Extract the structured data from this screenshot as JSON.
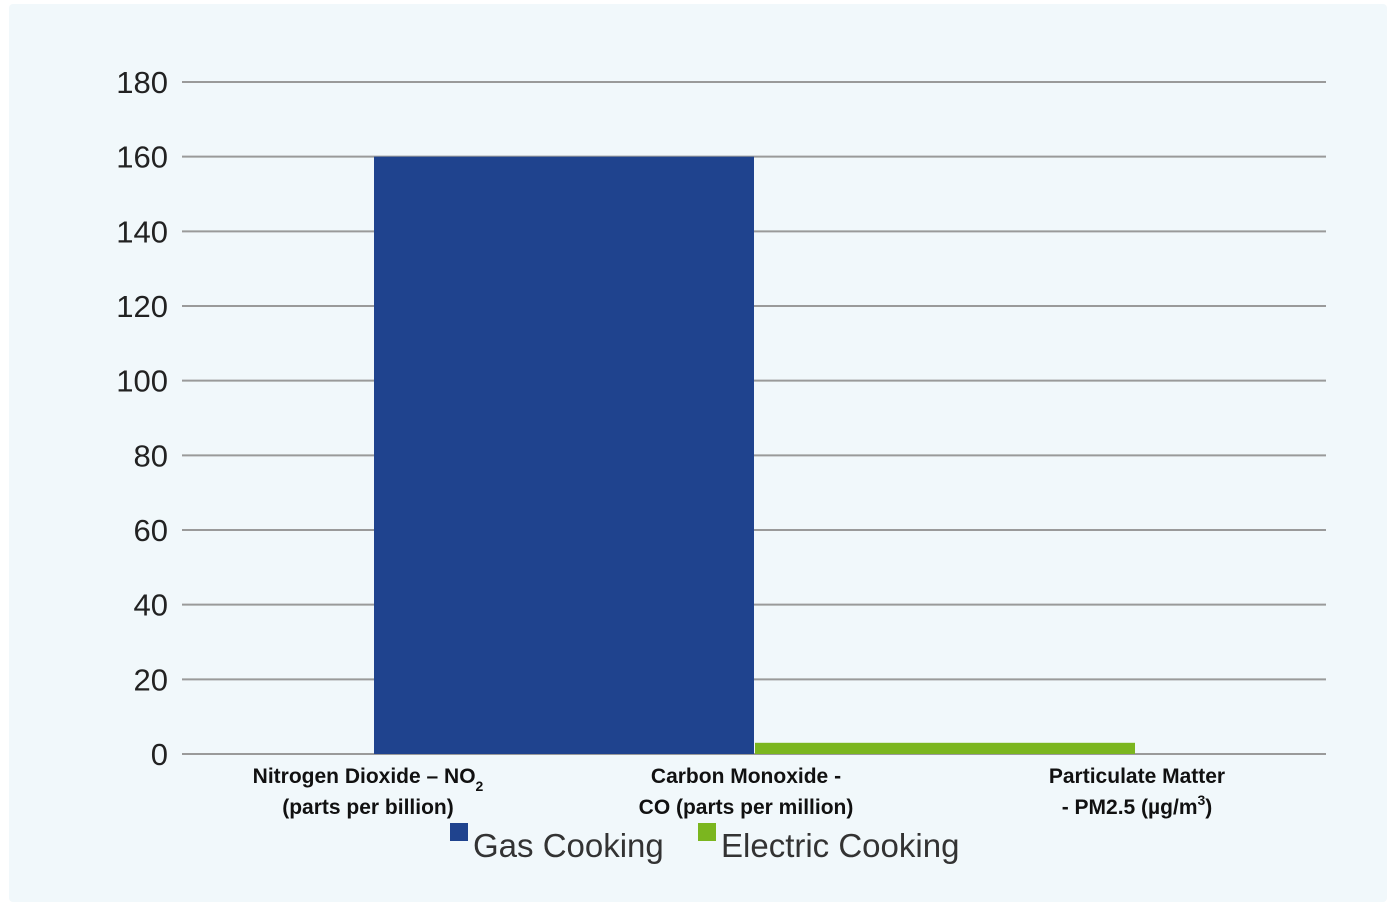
{
  "chart_data": {
    "type": "bar",
    "categories": [
      {
        "line1": "Nitrogen Dioxide – NO",
        "line1_sub": "2",
        "line1_sup": "",
        "line2": "(parts per billion)",
        "line2_sup": "",
        "line2_end": ""
      },
      {
        "line1": "Carbon Monoxide -",
        "line1_sub": "",
        "line1_sup": "",
        "line2": "CO (parts per million)",
        "line2_sup": "",
        "line2_end": ""
      },
      {
        "line1": "Particulate Matter",
        "line1_sub": "",
        "line1_sup": "",
        "line2": "- PM2.5 (µg/m",
        "line2_sup": "3",
        "line2_end": ")"
      }
    ],
    "series": [
      {
        "name": "Gas Cooking",
        "color": "#1f438e",
        "values": [
          160,
          null,
          null
        ]
      },
      {
        "name": "Electric Cooking",
        "color": "#7bb61f",
        "values": [
          null,
          3,
          null
        ]
      }
    ],
    "ylim": [
      0,
      180
    ],
    "yticks": [
      "0",
      "20",
      "40",
      "60",
      "80",
      "100",
      "120",
      "140",
      "160",
      "180"
    ],
    "grid": true,
    "legend_position": "bottom"
  },
  "colors": {
    "panel_background": "#f1f8fb",
    "gridline": "#9a9a9a"
  }
}
